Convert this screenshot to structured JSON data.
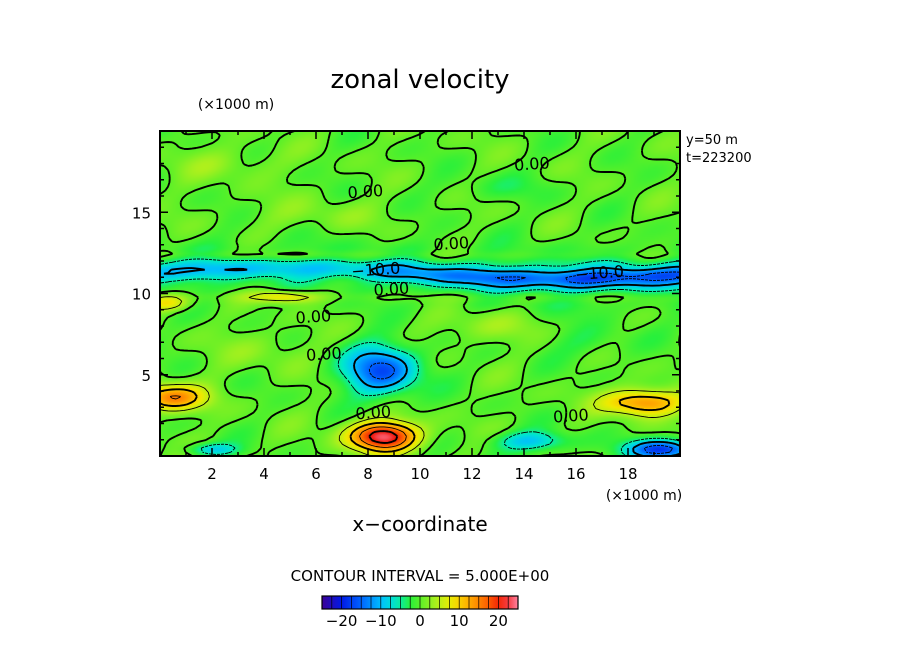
{
  "chart_data": {
    "type": "heatmap",
    "title": "zonal velocity",
    "xlabel": "x−coordinate",
    "x_unit": "(×1000 m)",
    "y_unit": "(×1000 m)",
    "xlim": [
      0,
      20
    ],
    "ylim": [
      0,
      20
    ],
    "x_ticks": [
      2,
      4,
      6,
      8,
      10,
      12,
      14,
      16,
      18
    ],
    "y_ticks": [
      5,
      10,
      15
    ],
    "annotations": [
      "y=50 m",
      "t=223200"
    ],
    "contour_interval_text": "CONTOUR INTERVAL = 5.000E+00",
    "contour_labels": [
      {
        "text": "0.00",
        "x": 14.3,
        "y": 18.0
      },
      {
        "text": "0.00",
        "x": 7.9,
        "y": 16.3
      },
      {
        "text": "0.00",
        "x": 11.2,
        "y": 13.1
      },
      {
        "text": "−10.0",
        "x": 8.3,
        "y": 11.5
      },
      {
        "text": "−10.0",
        "x": 16.9,
        "y": 11.3
      },
      {
        "text": "0.00",
        "x": 8.9,
        "y": 10.3
      },
      {
        "text": "0.00",
        "x": 5.9,
        "y": 8.6
      },
      {
        "text": "0.00",
        "x": 6.3,
        "y": 6.3
      },
      {
        "text": "0.00",
        "x": 8.2,
        "y": 2.7
      },
      {
        "text": "0.00",
        "x": 15.8,
        "y": 2.5
      }
    ],
    "colorbar": {
      "vmin": -25,
      "vmax": 25,
      "ticks": [
        -20,
        -10,
        0,
        10,
        20
      ],
      "tick_labels": [
        "−20",
        "−10",
        "0",
        "10",
        "20"
      ]
    },
    "features": [
      {
        "kind": "jet",
        "y": 11.3,
        "value": -14
      },
      {
        "kind": "band",
        "y": 12.3,
        "value": 3
      },
      {
        "kind": "band",
        "y": 9.8,
        "value": 4
      },
      {
        "kind": "blob",
        "x": 8.5,
        "y": 5.3,
        "value": -15
      },
      {
        "kind": "blob",
        "x": 8.6,
        "y": 1.2,
        "value": 23
      },
      {
        "kind": "blob",
        "x": 0.6,
        "y": 3.6,
        "value": 14
      },
      {
        "kind": "blob",
        "x": 18.4,
        "y": 3.3,
        "value": 14
      },
      {
        "kind": "blob",
        "x": 19.2,
        "y": 0.4,
        "value": -17
      },
      {
        "kind": "blob",
        "x": 4.8,
        "y": 9.8,
        "value": 11
      },
      {
        "kind": "blob",
        "x": 14.3,
        "y": 0.8,
        "value": -9
      }
    ]
  }
}
